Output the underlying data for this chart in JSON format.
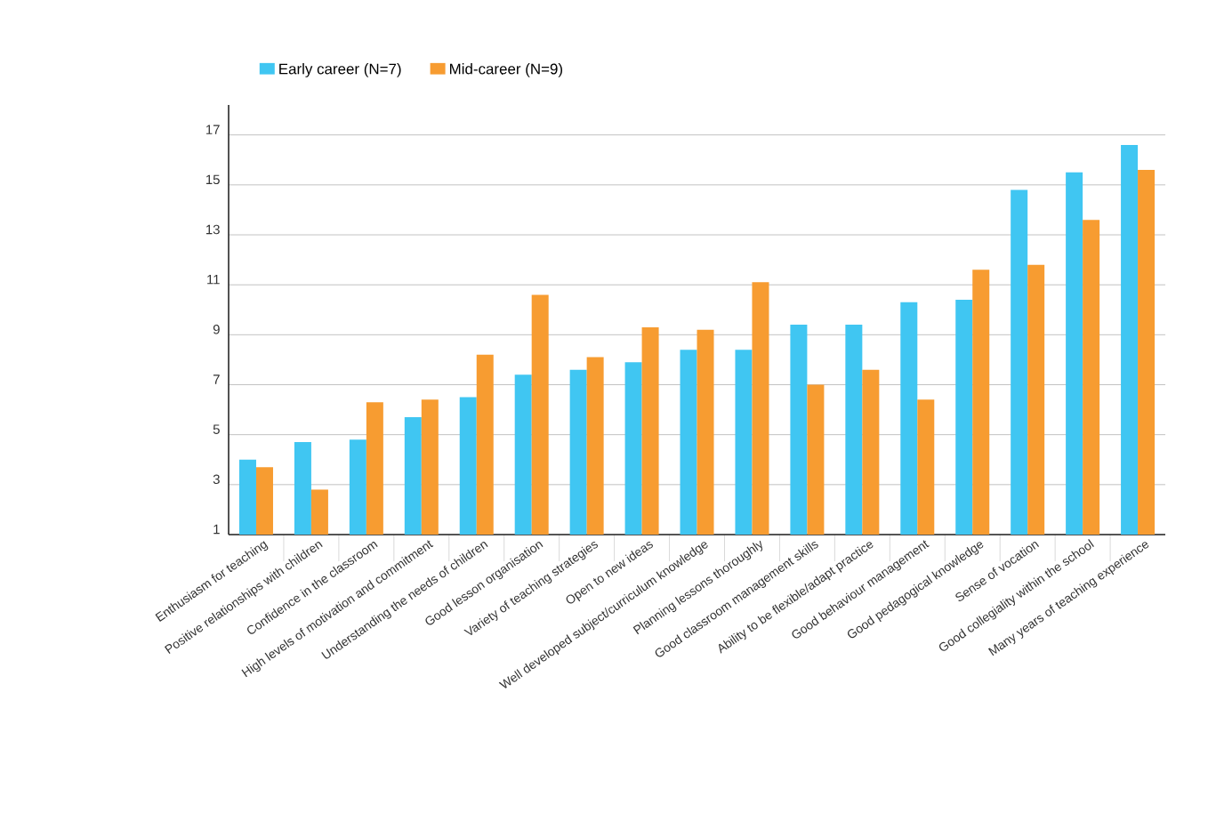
{
  "chart_data": {
    "type": "bar",
    "categories": [
      "Enthusiasm for teaching",
      "Positive relationships with children",
      "Confidence in the classroom",
      "High levels of motivation and commitment",
      "Understanding the needs of children",
      "Good lesson organisation",
      "Variety of teaching strategies",
      "Open to new ideas",
      "Well developed subject/curriculum knowledge",
      "Planning lessons thoroughly",
      "Good classroom management skills",
      "Ability to be flexible/adapt practice",
      "Good behaviour management",
      "Good pedagogical knowledge",
      "Sense of vocation",
      "Good collegiality within the school",
      "Many years of teaching experience"
    ],
    "series": [
      {
        "name": "Early career (N=7)",
        "color": "#40c6f2",
        "values": [
          4.0,
          4.7,
          4.8,
          5.7,
          6.5,
          7.4,
          7.6,
          7.9,
          8.4,
          8.4,
          9.4,
          9.4,
          10.3,
          10.4,
          14.8,
          15.5,
          16.6
        ]
      },
      {
        "name": "Mid-career (N=9)",
        "color": "#f79c31",
        "values": [
          3.7,
          2.8,
          6.3,
          6.4,
          8.2,
          10.6,
          8.1,
          9.3,
          9.2,
          11.1,
          7.0,
          7.6,
          6.4,
          11.6,
          11.8,
          13.6,
          15.6
        ]
      }
    ],
    "ylim": [
      1,
      18.2
    ],
    "yticks": [
      1,
      3,
      5,
      7,
      9,
      11,
      13,
      15,
      17
    ],
    "grid": "y",
    "legend": "top left"
  }
}
